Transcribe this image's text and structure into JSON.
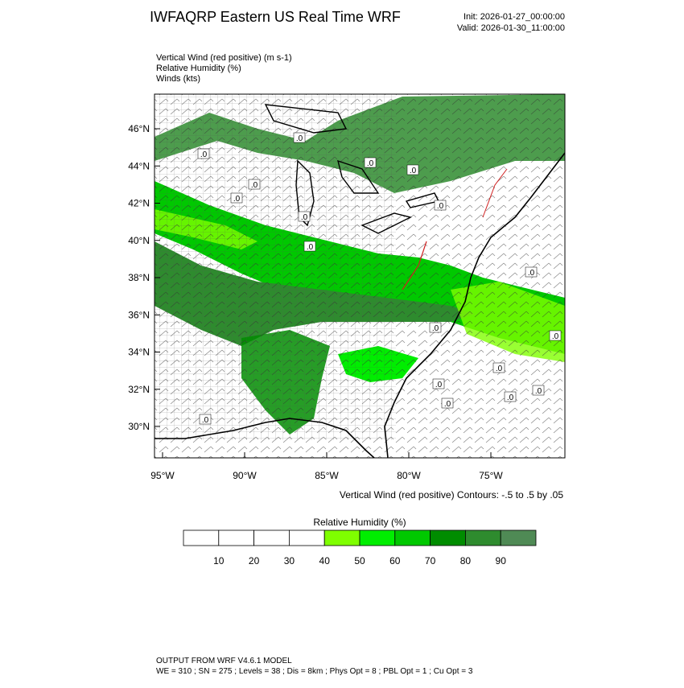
{
  "header": {
    "title": "IWFAQRP Eastern US Real Time WRF",
    "init": "Init: 2026-01-27_00:00:00",
    "valid": "Valid: 2026-01-30_11:00:00"
  },
  "fields": [
    "Vertical Wind (red positive)   (m s-1)",
    "Relative Humidity   (%)",
    "Winds   (kts)"
  ],
  "map": {
    "lat_labels": [
      "46°N",
      "44°N",
      "42°N",
      "40°N",
      "38°N",
      "36°N",
      "34°N",
      "32°N",
      "30°N"
    ],
    "lon_labels": [
      "95°W",
      "90°W",
      "85°W",
      "80°W",
      "75°W"
    ],
    "contour_labels": [
      ".0",
      ".0",
      ".0",
      ".0",
      ".0",
      ".0",
      ".0",
      ".0",
      ".0",
      ".0",
      ".0",
      ".0",
      ".0",
      ".0",
      ".0",
      ".0",
      ".0",
      ".0"
    ]
  },
  "contour_note": "Vertical Wind (red positive) Contours: -.5 to .5 by .05",
  "colorbar": {
    "title": "Relative Humidity   (%)",
    "labels": [
      "10",
      "20",
      "30",
      "40",
      "50",
      "60",
      "70",
      "80",
      "90"
    ],
    "colors": [
      "#ffffff",
      "#ffffff",
      "#ffffff",
      "#ffffff",
      "#7fff00",
      "#00ee00",
      "#00c800",
      "#008c00",
      "#2e8b2e",
      "#4f8a55"
    ]
  },
  "footer": {
    "line1": "OUTPUT FROM WRF V4.6.1 MODEL",
    "line2": "WE = 310 ; SN = 275 ; Levels = 38 ; Dis = 8km ; Phys Opt = 8 ; PBL Opt = 1 ; Cu Opt = 3"
  }
}
